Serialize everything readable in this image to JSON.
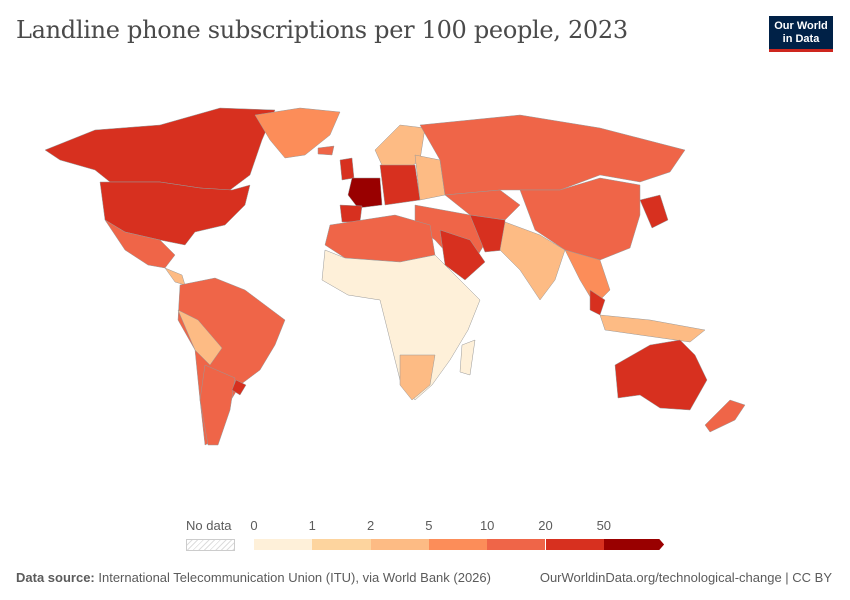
{
  "title": "Landline phone subscriptions per 100 people, 2023",
  "logo": {
    "line1": "Our World",
    "line2": "in Data"
  },
  "legend": {
    "no_data_label": "No data",
    "ticks": [
      "0",
      "1",
      "2",
      "5",
      "10",
      "20",
      "50"
    ],
    "colors": [
      "#fef0d9",
      "#fdd49e",
      "#fdbb84",
      "#fc8d59",
      "#ef6548",
      "#d7301f",
      "#990000"
    ]
  },
  "map": {
    "ocean": "#ffffff",
    "border": "#999999"
  },
  "footer": {
    "source_label": "Data source:",
    "source_text": "International Telecommunication Union (ITU), via World Bank (2026)",
    "url": "OurWorldinData.org/technological-change | CC BY"
  }
}
